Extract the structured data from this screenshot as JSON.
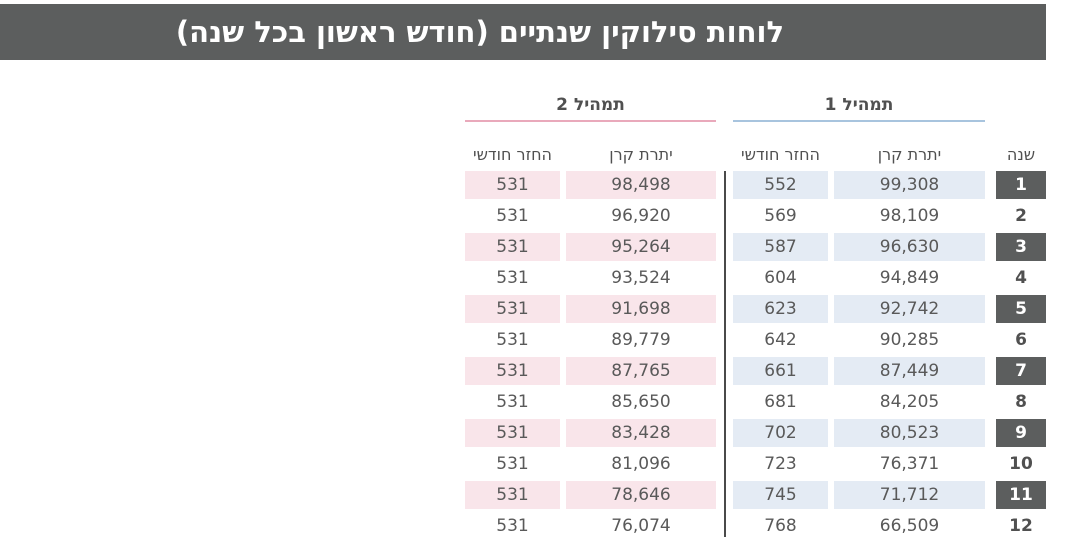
{
  "title": "לוחות סילוקין שנתיים (חודש ראשון בכל שנה)",
  "groups": {
    "g1": "תמהיל 1",
    "g2": "תמהיל 2"
  },
  "headers": {
    "year": "שנה",
    "balance": "יתרת קרן",
    "payment": "החזר חודשי"
  },
  "colors": {
    "title_bg": "#5c5e5e",
    "mix1_shade": "#e4ebf4",
    "mix2_shade": "#f9e5ea",
    "mix1_line": "#a8c4de",
    "mix2_line": "#e9a9bb"
  },
  "rows": [
    {
      "year": "1",
      "m1_balance": "99,308",
      "m1_payment": "552",
      "m2_balance": "98,498",
      "m2_payment": "531"
    },
    {
      "year": "2",
      "m1_balance": "98,109",
      "m1_payment": "569",
      "m2_balance": "96,920",
      "m2_payment": "531"
    },
    {
      "year": "3",
      "m1_balance": "96,630",
      "m1_payment": "587",
      "m2_balance": "95,264",
      "m2_payment": "531"
    },
    {
      "year": "4",
      "m1_balance": "94,849",
      "m1_payment": "604",
      "m2_balance": "93,524",
      "m2_payment": "531"
    },
    {
      "year": "5",
      "m1_balance": "92,742",
      "m1_payment": "623",
      "m2_balance": "91,698",
      "m2_payment": "531"
    },
    {
      "year": "6",
      "m1_balance": "90,285",
      "m1_payment": "642",
      "m2_balance": "89,779",
      "m2_payment": "531"
    },
    {
      "year": "7",
      "m1_balance": "87,449",
      "m1_payment": "661",
      "m2_balance": "87,765",
      "m2_payment": "531"
    },
    {
      "year": "8",
      "m1_balance": "84,205",
      "m1_payment": "681",
      "m2_balance": "85,650",
      "m2_payment": "531"
    },
    {
      "year": "9",
      "m1_balance": "80,523",
      "m1_payment": "702",
      "m2_balance": "83,428",
      "m2_payment": "531"
    },
    {
      "year": "10",
      "m1_balance": "76,371",
      "m1_payment": "723",
      "m2_balance": "81,096",
      "m2_payment": "531"
    },
    {
      "year": "11",
      "m1_balance": "71,712",
      "m1_payment": "745",
      "m2_balance": "78,646",
      "m2_payment": "531"
    },
    {
      "year": "12",
      "m1_balance": "66,509",
      "m1_payment": "768",
      "m2_balance": "76,074",
      "m2_payment": "531"
    }
  ]
}
